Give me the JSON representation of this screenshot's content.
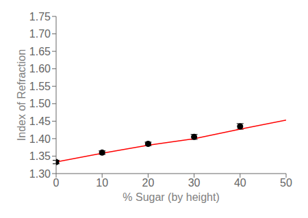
{
  "chart_data": {
    "type": "scatter",
    "xlabel": "% Sugar (by height)",
    "ylabel": "Index of Refraction",
    "series": [
      {
        "type": "scatter",
        "color": "black",
        "marker": "circle",
        "x": [
          0,
          10,
          20,
          30,
          40
        ],
        "values": [
          1.333,
          1.36,
          1.385,
          1.405,
          1.435
        ],
        "error": [
          0.005,
          0.005,
          0.005,
          0.007,
          0.008
        ]
      },
      {
        "type": "line",
        "color": "red",
        "line_style": "solid",
        "x": [
          0,
          10,
          20,
          30,
          40,
          50
        ],
        "values": [
          1.333,
          1.358,
          1.381,
          1.4,
          1.427,
          1.453
        ]
      }
    ],
    "xlim": [
      0,
      50
    ],
    "xticks": [
      0,
      10,
      20,
      30,
      40,
      50
    ],
    "ylim": [
      1.3,
      1.75
    ],
    "yticks": [
      {
        "value": 1.3,
        "label": "1.30"
      },
      1.35,
      {
        "value": 1.4,
        "label": "1.40"
      },
      1.45,
      {
        "value": 1.5,
        "label": "1.50"
      },
      1.55,
      {
        "value": 1.6,
        "label": "1.60"
      },
      1.65,
      {
        "value": 1.7,
        "label": "1.70"
      },
      1.75
    ],
    "grid": false
  }
}
